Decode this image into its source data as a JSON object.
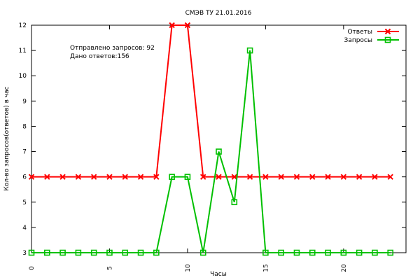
{
  "chart_data": {
    "type": "line",
    "title": "СМЭВ ТУ 21.01.2016",
    "xlabel": "Часы",
    "ylabel": "Кол-во запросов(ответов) в час",
    "xlim": [
      0,
      24
    ],
    "ylim": [
      3,
      12
    ],
    "xticks": [
      0,
      5,
      10,
      15,
      20
    ],
    "yticks": [
      3,
      4,
      5,
      6,
      7,
      8,
      9,
      10,
      11,
      12
    ],
    "grid": false,
    "legend_position": "top-right",
    "x": [
      0,
      1,
      2,
      3,
      4,
      5,
      6,
      7,
      8,
      9,
      10,
      11,
      12,
      13,
      14,
      15,
      16,
      17,
      18,
      19,
      20,
      21,
      22,
      23
    ],
    "series": [
      {
        "name": "Ответы",
        "color": "#ff0000",
        "marker": "x",
        "values": [
          6,
          6,
          6,
          6,
          6,
          6,
          6,
          6,
          6,
          12,
          12,
          6,
          6,
          6,
          6,
          6,
          6,
          6,
          6,
          6,
          6,
          6,
          6,
          6
        ]
      },
      {
        "name": "Запросы",
        "color": "#00c000",
        "marker": "square",
        "values": [
          3,
          3,
          3,
          3,
          3,
          3,
          3,
          3,
          3,
          6,
          6,
          3,
          7,
          5,
          11,
          3,
          3,
          3,
          3,
          3,
          3,
          3,
          3,
          3
        ]
      }
    ],
    "annotations": [
      "Отправлено запросов: 92",
      "Дано ответов:156"
    ]
  }
}
